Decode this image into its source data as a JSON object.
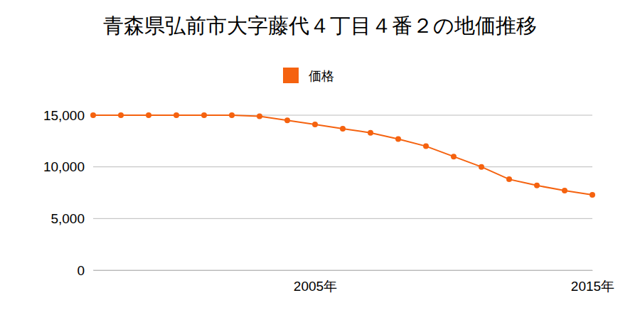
{
  "chart_data": {
    "type": "line",
    "title": "青森県弘前市大字藤代４丁目４番２の地価推移",
    "x": [
      1997,
      1998,
      1999,
      2000,
      2001,
      2002,
      2003,
      2004,
      2005,
      2006,
      2007,
      2008,
      2009,
      2010,
      2011,
      2012,
      2013,
      2014,
      2015
    ],
    "series": [
      {
        "name": "価格",
        "color": "#f5620f",
        "marker": "circle",
        "values": [
          15000,
          15000,
          15000,
          15000,
          15000,
          15000,
          14900,
          14500,
          14100,
          13700,
          13300,
          12700,
          12000,
          11000,
          10000,
          8800,
          8200,
          7700,
          7300
        ]
      }
    ],
    "xlim": [
      1997,
      2015
    ],
    "xticks": [
      {
        "value": 2005,
        "label": "2005年"
      },
      {
        "value": 2015,
        "label": "2015年"
      }
    ],
    "ylim": [
      0,
      15000
    ],
    "yticks": [
      0,
      {
        "value": 5000,
        "label": "5,000"
      },
      {
        "value": 10000,
        "label": "10,000"
      },
      {
        "value": 15000,
        "label": "15,000"
      }
    ],
    "grid": true,
    "legend": "top"
  }
}
